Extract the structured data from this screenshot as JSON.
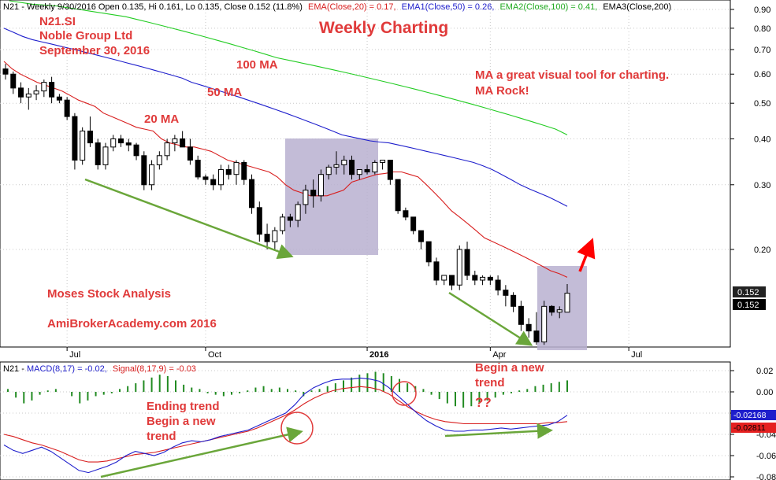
{
  "header": {
    "price_text": "N21 - Weekly 9/30/2016 Open 0.135, Hi 0.161, Lo 0.135, Close 0.152 (11.8%)",
    "ema20_text": "EMA(Close,20) = 0.17,",
    "ema50_text": "EMA1(Close,50) = 0.26,",
    "ema100_text": "EMA2(Close,100) = 0.41,",
    "ema200_text": "EMA3(Close,200)",
    "macd_label": "N21 - ",
    "macd_text": "MACD(8,17) = -0.02,",
    "signal_text": "Signal(8,17,9) = -0.03"
  },
  "annotations": {
    "ticker": "N21.SI",
    "company": "Noble Group Ltd",
    "date": "September 30, 2016",
    "title": "Weekly Charting",
    "ma100": "100 MA",
    "ma50": "50 MA",
    "ma20": "20 MA",
    "note1": "MA a great visual tool for charting.",
    "note2": "MA Rock!",
    "brand1": "Moses Stock Analysis",
    "brand2": "AmiBrokerAcademy.com  2016",
    "begin_new_trend": "Begin a new trend",
    "ending_trend": "Ending trend",
    "begin_a_new": "Begin a new",
    "trend": "trend",
    "question": "??"
  },
  "colors": {
    "up": "#ffffff",
    "down": "#000000",
    "ema20": "#d81e1e",
    "ema50": "#1e1ecc",
    "ema100": "#22cc22",
    "histogram": "#228b22",
    "signal": "#d81e1e",
    "annotation": "#e03a3a",
    "highlight": "#b8b0d0",
    "arrow_green": "#6aa63a",
    "arrow_red": "#ff0000"
  },
  "chart_data": {
    "type": "candlestick",
    "y_scale": "log",
    "price_axis_ticks": [
      "0.90",
      "0.80",
      "0.70",
      "0.60",
      "0.50",
      "0.40",
      "0.30",
      "0.20"
    ],
    "x_axis_labels": [
      "Jul",
      "Oct",
      "2016",
      "Apr",
      "Jul"
    ],
    "last_price_labels": [
      "0.152",
      "0.152"
    ],
    "candles": [
      [
        0.62,
        0.64,
        0.58,
        0.6
      ],
      [
        0.6,
        0.61,
        0.53,
        0.55
      ],
      [
        0.55,
        0.57,
        0.5,
        0.52
      ],
      [
        0.52,
        0.55,
        0.48,
        0.53
      ],
      [
        0.53,
        0.56,
        0.51,
        0.54
      ],
      [
        0.54,
        0.58,
        0.52,
        0.57
      ],
      [
        0.57,
        0.59,
        0.5,
        0.52
      ],
      [
        0.52,
        0.53,
        0.5,
        0.51
      ],
      [
        0.51,
        0.52,
        0.45,
        0.46
      ],
      [
        0.46,
        0.47,
        0.33,
        0.35
      ],
      [
        0.35,
        0.43,
        0.34,
        0.42
      ],
      [
        0.42,
        0.46,
        0.38,
        0.39
      ],
      [
        0.39,
        0.4,
        0.33,
        0.34
      ],
      [
        0.34,
        0.39,
        0.33,
        0.38
      ],
      [
        0.38,
        0.41,
        0.37,
        0.4
      ],
      [
        0.4,
        0.41,
        0.38,
        0.39
      ],
      [
        0.39,
        0.4,
        0.37,
        0.385
      ],
      [
        0.385,
        0.39,
        0.35,
        0.36
      ],
      [
        0.36,
        0.37,
        0.29,
        0.3
      ],
      [
        0.3,
        0.35,
        0.29,
        0.34
      ],
      [
        0.34,
        0.37,
        0.33,
        0.36
      ],
      [
        0.36,
        0.4,
        0.35,
        0.39
      ],
      [
        0.39,
        0.41,
        0.37,
        0.4
      ],
      [
        0.4,
        0.42,
        0.38,
        0.38
      ],
      [
        0.38,
        0.4,
        0.34,
        0.35
      ],
      [
        0.35,
        0.36,
        0.31,
        0.315
      ],
      [
        0.315,
        0.32,
        0.3,
        0.31
      ],
      [
        0.31,
        0.32,
        0.29,
        0.3
      ],
      [
        0.3,
        0.34,
        0.29,
        0.33
      ],
      [
        0.33,
        0.34,
        0.31,
        0.32
      ],
      [
        0.32,
        0.35,
        0.3,
        0.345
      ],
      [
        0.345,
        0.35,
        0.3,
        0.31
      ],
      [
        0.31,
        0.32,
        0.25,
        0.26
      ],
      [
        0.26,
        0.27,
        0.21,
        0.22
      ],
      [
        0.22,
        0.235,
        0.2,
        0.21
      ],
      [
        0.21,
        0.23,
        0.2,
        0.225
      ],
      [
        0.225,
        0.25,
        0.22,
        0.245
      ],
      [
        0.245,
        0.25,
        0.23,
        0.24
      ],
      [
        0.24,
        0.27,
        0.23,
        0.265
      ],
      [
        0.265,
        0.3,
        0.25,
        0.29
      ],
      [
        0.29,
        0.31,
        0.26,
        0.28
      ],
      [
        0.28,
        0.33,
        0.27,
        0.32
      ],
      [
        0.32,
        0.34,
        0.31,
        0.335
      ],
      [
        0.335,
        0.37,
        0.32,
        0.34
      ],
      [
        0.34,
        0.36,
        0.32,
        0.35
      ],
      [
        0.35,
        0.36,
        0.31,
        0.32
      ],
      [
        0.32,
        0.33,
        0.31,
        0.33
      ],
      [
        0.33,
        0.34,
        0.32,
        0.325
      ],
      [
        0.325,
        0.35,
        0.32,
        0.345
      ],
      [
        0.345,
        0.35,
        0.33,
        0.35
      ],
      [
        0.35,
        0.35,
        0.3,
        0.31
      ],
      [
        0.31,
        0.31,
        0.25,
        0.255
      ],
      [
        0.255,
        0.26,
        0.24,
        0.245
      ],
      [
        0.245,
        0.245,
        0.22,
        0.225
      ],
      [
        0.225,
        0.225,
        0.2,
        0.21
      ],
      [
        0.21,
        0.21,
        0.18,
        0.185
      ],
      [
        0.185,
        0.19,
        0.16,
        0.165
      ],
      [
        0.165,
        0.17,
        0.16,
        0.17
      ],
      [
        0.17,
        0.17,
        0.155,
        0.16
      ],
      [
        0.16,
        0.205,
        0.155,
        0.2
      ],
      [
        0.2,
        0.21,
        0.165,
        0.17
      ],
      [
        0.17,
        0.175,
        0.16,
        0.165
      ],
      [
        0.165,
        0.17,
        0.16,
        0.168
      ],
      [
        0.168,
        0.17,
        0.16,
        0.165
      ],
      [
        0.165,
        0.17,
        0.15,
        0.155
      ],
      [
        0.155,
        0.16,
        0.14,
        0.15
      ],
      [
        0.15,
        0.153,
        0.135,
        0.14
      ],
      [
        0.14,
        0.145,
        0.12,
        0.125
      ],
      [
        0.125,
        0.13,
        0.115,
        0.12
      ],
      [
        0.12,
        0.135,
        0.11,
        0.112
      ],
      [
        0.112,
        0.145,
        0.11,
        0.14
      ],
      [
        0.14,
        0.141,
        0.132,
        0.135
      ],
      [
        0.135,
        0.14,
        0.13,
        0.137
      ],
      [
        0.135,
        0.161,
        0.135,
        0.152
      ]
    ],
    "ema20": [
      0.65,
      0.62,
      0.6,
      0.585,
      0.57,
      0.56,
      0.55,
      0.54,
      0.525,
      0.51,
      0.5,
      0.49,
      0.47,
      0.46,
      0.45,
      0.44,
      0.43,
      0.425,
      0.42,
      0.4,
      0.39,
      0.385,
      0.38,
      0.38,
      0.375,
      0.37,
      0.36,
      0.35,
      0.345,
      0.34,
      0.335,
      0.33,
      0.325,
      0.315,
      0.3,
      0.29,
      0.285,
      0.28,
      0.28,
      0.28,
      0.285,
      0.29,
      0.305,
      0.31,
      0.315,
      0.32,
      0.322,
      0.325,
      0.325,
      0.32,
      0.315,
      0.3,
      0.285,
      0.27,
      0.255,
      0.245,
      0.235,
      0.225,
      0.215,
      0.21,
      0.205,
      0.2,
      0.195,
      0.19,
      0.185,
      0.18,
      0.175,
      0.172,
      0.168
    ],
    "ema50": [
      0.8,
      0.78,
      0.76,
      0.745,
      0.735,
      0.725,
      0.715,
      0.705,
      0.695,
      0.685,
      0.675,
      0.665,
      0.655,
      0.645,
      0.635,
      0.625,
      0.615,
      0.605,
      0.595,
      0.585,
      0.57,
      0.56,
      0.55,
      0.54,
      0.53,
      0.52,
      0.51,
      0.5,
      0.49,
      0.48,
      0.47,
      0.46,
      0.45,
      0.44,
      0.43,
      0.42,
      0.41,
      0.405,
      0.4,
      0.395,
      0.392,
      0.39,
      0.385,
      0.38,
      0.375,
      0.37,
      0.365,
      0.36,
      0.355,
      0.35,
      0.345,
      0.338,
      0.33,
      0.32,
      0.31,
      0.3,
      0.292,
      0.285,
      0.278,
      0.27,
      0.262
    ],
    "ema100": [
      0.95,
      0.94,
      0.93,
      0.925,
      0.92,
      0.91,
      0.9,
      0.89,
      0.88,
      0.87,
      0.86,
      0.845,
      0.83,
      0.815,
      0.8,
      0.785,
      0.77,
      0.755,
      0.74,
      0.725,
      0.71,
      0.695,
      0.68,
      0.665,
      0.655,
      0.645,
      0.635,
      0.625,
      0.615,
      0.605,
      0.595,
      0.585,
      0.575,
      0.565,
      0.555,
      0.545,
      0.535,
      0.525,
      0.515,
      0.505,
      0.495,
      0.485,
      0.475,
      0.465,
      0.455,
      0.445,
      0.435,
      0.425,
      0.41
    ],
    "macd_axis_ticks": [
      "0.02",
      "0.00",
      "-0.02",
      "-0.04",
      "-0.06",
      "-0.08"
    ],
    "macd_labels": [
      "-0.02168",
      "-0.02811"
    ],
    "histogram": [
      0.002,
      -0.004,
      -0.008,
      -0.006,
      -0.002,
      0.001,
      0.002,
      0.0,
      -0.003,
      -0.008,
      -0.006,
      -0.003,
      -0.002,
      -0.001,
      0.002,
      0.004,
      0.006,
      0.008,
      0.01,
      0.012,
      0.011,
      0.008,
      0.005,
      0.003,
      0.002,
      -0.001,
      -0.002,
      -0.003,
      -0.002,
      -0.001,
      0.001,
      0.003,
      0.004,
      0.002,
      0.003,
      0.002,
      0.001,
      -0.003,
      0.001,
      0.002,
      0.004,
      0.006,
      0.008,
      0.01,
      0.012,
      0.013,
      0.014,
      0.013,
      0.011,
      0.009,
      0.006,
      0.004,
      0.002,
      -0.002,
      -0.005,
      -0.008,
      -0.01,
      -0.011,
      -0.01,
      -0.008,
      -0.006,
      -0.004,
      -0.002,
      -0.001,
      0.001,
      0.002,
      0.004,
      0.005,
      0.006,
      0.007,
      0.008
    ],
    "macd": [
      -0.05,
      -0.055,
      -0.058,
      -0.055,
      -0.052,
      -0.056,
      -0.062,
      -0.068,
      -0.074,
      -0.076,
      -0.073,
      -0.07,
      -0.066,
      -0.06,
      -0.056,
      -0.058,
      -0.06,
      -0.057,
      -0.052,
      -0.048,
      -0.046,
      -0.047,
      -0.045,
      -0.042,
      -0.04,
      -0.038,
      -0.036,
      -0.032,
      -0.028,
      -0.024,
      -0.02,
      -0.012,
      -0.002,
      0.004,
      0.008,
      0.011,
      0.012,
      0.012,
      0.013,
      0.012,
      0.01,
      0.004,
      -0.004,
      -0.012,
      -0.02,
      -0.027,
      -0.032,
      -0.036,
      -0.037,
      -0.037,
      -0.036,
      -0.036,
      -0.035,
      -0.034,
      -0.035,
      -0.034,
      -0.033,
      -0.032,
      -0.031,
      -0.028,
      -0.022
    ],
    "signal": [
      -0.04,
      -0.042,
      -0.045,
      -0.048,
      -0.05,
      -0.053,
      -0.056,
      -0.06,
      -0.064,
      -0.066,
      -0.066,
      -0.065,
      -0.063,
      -0.061,
      -0.059,
      -0.058,
      -0.057,
      -0.055,
      -0.053,
      -0.051,
      -0.049,
      -0.047,
      -0.045,
      -0.043,
      -0.041,
      -0.039,
      -0.037,
      -0.034,
      -0.03,
      -0.026,
      -0.022,
      -0.017,
      -0.011,
      -0.006,
      -0.002,
      0.001,
      0.003,
      0.004,
      0.005,
      0.004,
      0.002,
      -0.002,
      -0.008,
      -0.014,
      -0.019,
      -0.023,
      -0.026,
      -0.028,
      -0.029,
      -0.03,
      -0.03,
      -0.03,
      -0.03,
      -0.03,
      -0.03,
      -0.03,
      -0.03,
      -0.03,
      -0.029,
      -0.029,
      -0.028
    ]
  }
}
